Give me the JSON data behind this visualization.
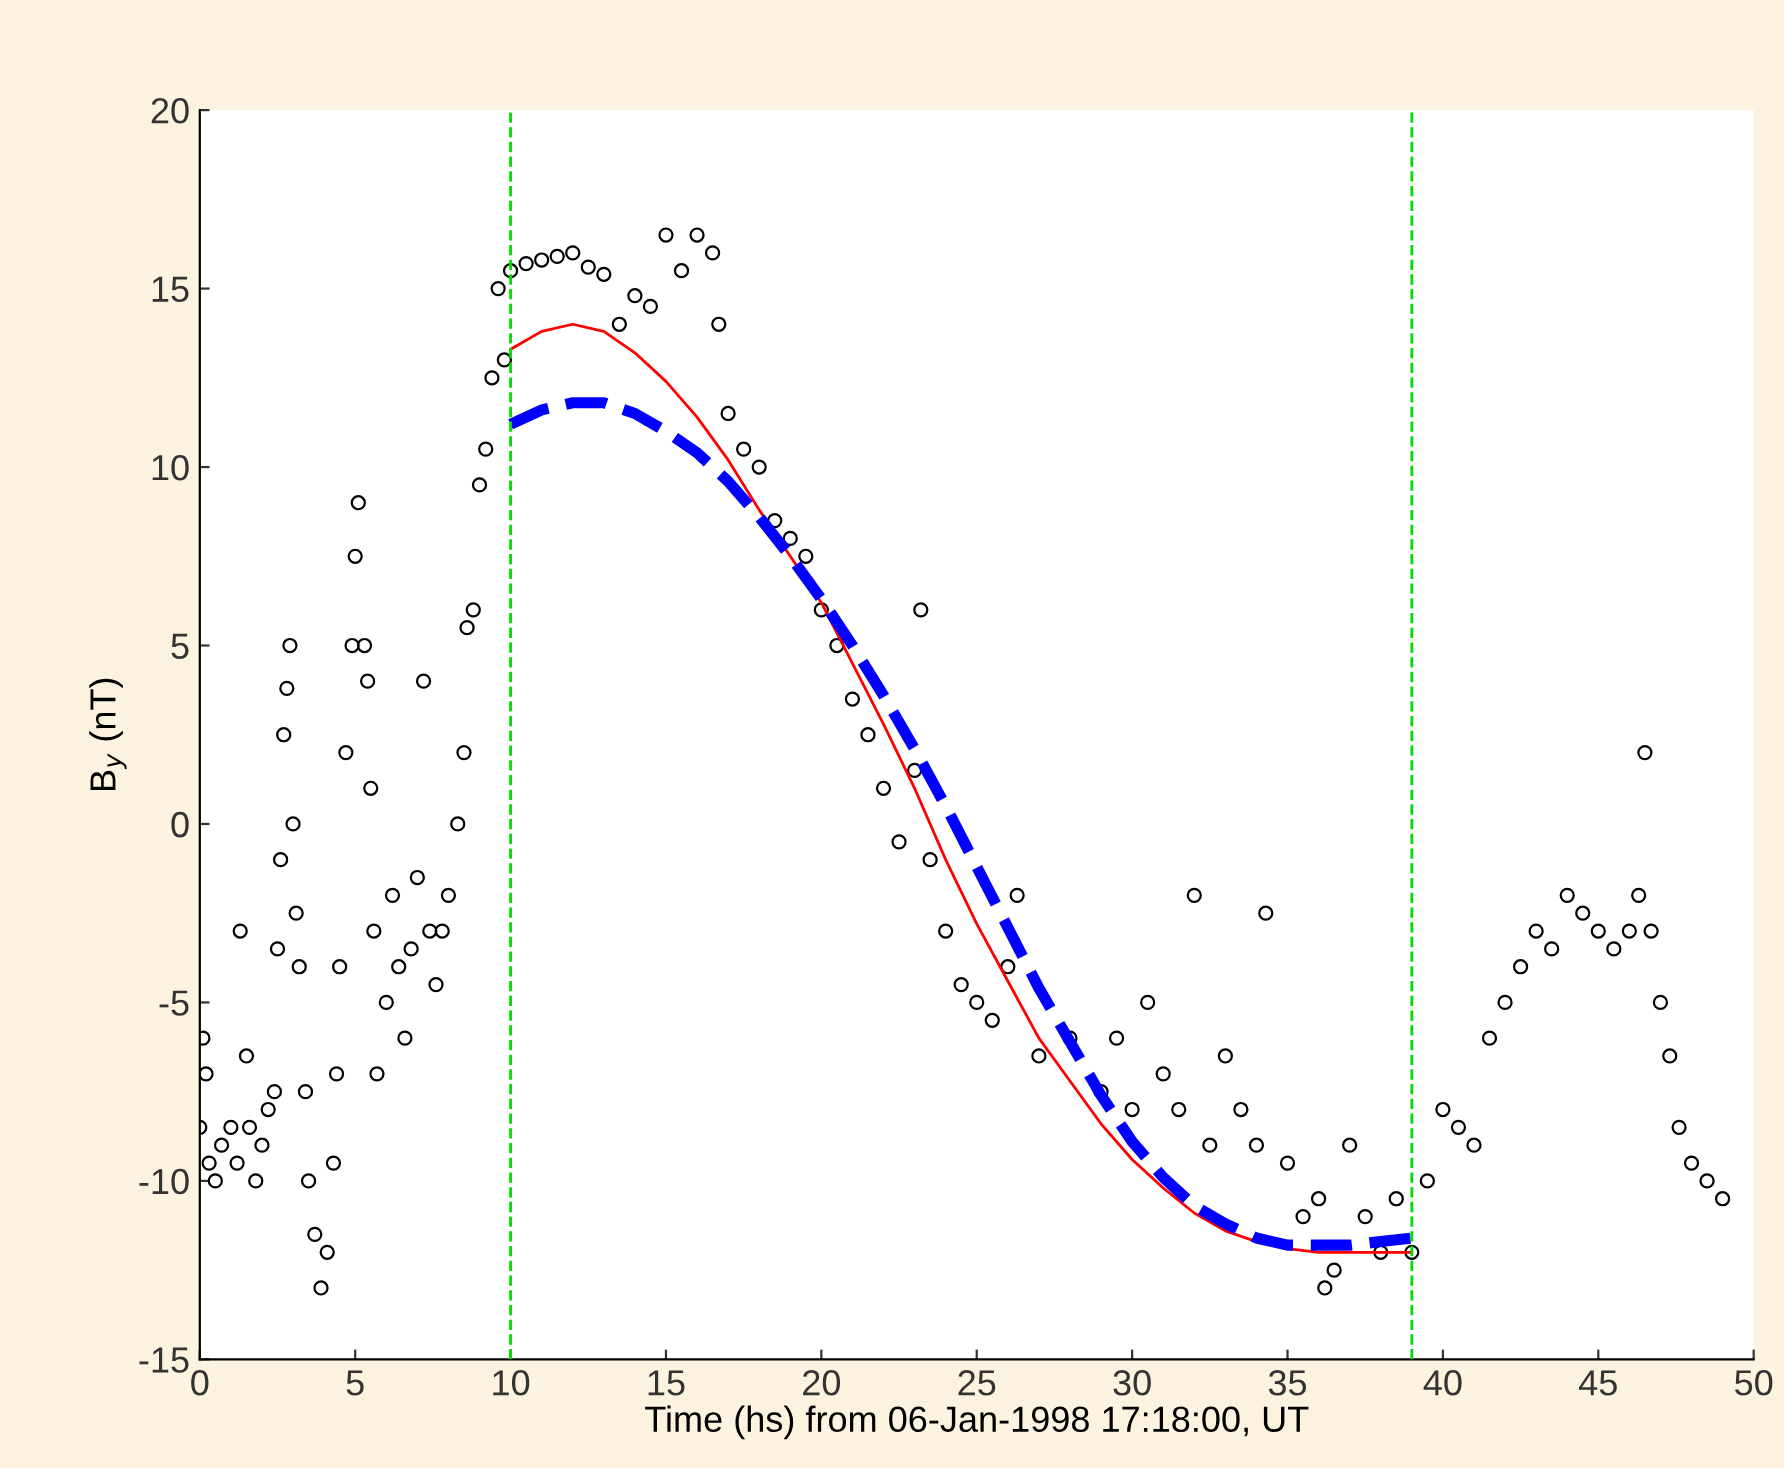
{
  "chart_data": {
    "type": "scatter",
    "xlabel": "Time (hs) from 06-Jan-1998 17:18:00, UT",
    "ylabel": "B$_{y}$ (nT)",
    "xlim": [
      0,
      50
    ],
    "xticks": [
      0,
      5,
      10,
      15,
      20,
      25,
      30,
      35,
      40,
      45,
      50
    ],
    "ylim": [
      -15,
      20
    ],
    "yticks": [
      -15,
      -10,
      -5,
      0,
      5,
      10,
      15,
      20
    ],
    "grid": false,
    "legend": false,
    "series": [
      {
        "color": "#000000",
        "marker": "circle",
        "x": [
          0.0,
          0.1,
          0.2,
          0.3,
          0.5,
          0.7,
          1.0,
          1.2,
          1.3,
          1.5,
          1.6,
          1.8,
          2.0,
          2.2,
          2.4,
          2.5,
          2.6,
          2.7,
          2.8,
          2.9,
          3.0,
          3.1,
          3.2,
          3.4,
          3.5,
          3.7,
          3.9,
          4.1,
          4.3,
          4.4,
          4.5,
          4.7,
          4.9,
          5.0,
          5.1,
          5.3,
          5.4,
          5.5,
          5.6,
          5.7,
          6.0,
          6.2,
          6.4,
          6.6,
          6.8,
          7.0,
          7.2,
          7.4,
          7.6,
          7.8,
          8.0,
          8.3,
          8.5,
          8.6,
          8.8,
          9.0,
          9.2,
          9.4,
          9.6,
          9.8,
          10.0,
          10.5,
          11.0,
          11.5,
          12.0,
          12.5,
          13.0,
          13.5,
          14.0,
          14.5,
          15.0,
          15.5,
          16.0,
          16.5,
          16.7,
          17.0,
          17.5,
          18.0,
          18.5,
          19.0,
          19.5,
          20.0,
          20.5,
          21.0,
          21.5,
          22.0,
          22.5,
          23.0,
          23.2,
          23.5,
          24.0,
          24.5,
          25.0,
          25.5,
          26.0,
          26.3,
          27.0,
          28.0,
          29.0,
          29.5,
          30.0,
          30.5,
          31.0,
          31.5,
          32.0,
          32.5,
          33.0,
          33.5,
          34.0,
          34.3,
          35.0,
          35.5,
          36.0,
          36.2,
          36.5,
          37.0,
          37.5,
          38.0,
          38.5,
          39.0,
          39.5,
          40.0,
          40.5,
          41.0,
          41.5,
          42.0,
          42.5,
          43.0,
          43.5,
          44.0,
          44.5,
          45.0,
          45.5,
          46.0,
          46.3,
          46.5,
          46.7,
          47.0,
          47.3,
          47.6,
          48.0,
          48.5,
          49.0
        ],
        "values": [
          -8.5,
          -6,
          -7,
          -9.5,
          -10,
          -9,
          -8.5,
          -9.5,
          -3,
          -6.5,
          -8.5,
          -10,
          -9,
          -8,
          -7.5,
          -3.5,
          -1,
          2.5,
          3.8,
          5,
          0,
          -2.5,
          -4,
          -7.5,
          -10,
          -11.5,
          -13,
          -12,
          -9.5,
          -7,
          -4,
          2,
          5,
          7.5,
          9,
          5,
          4,
          1,
          -3,
          -7,
          -5,
          -2,
          -4,
          -6,
          -3.5,
          -1.5,
          4,
          -3,
          -4.5,
          -3,
          -2,
          0,
          2,
          5.5,
          6,
          9.5,
          10.5,
          12.5,
          15,
          13,
          15.5,
          15.7,
          15.8,
          15.9,
          16,
          15.6,
          15.4,
          14,
          14.8,
          14.5,
          16.5,
          15.5,
          16.5,
          16,
          14,
          11.5,
          10.5,
          10,
          8.5,
          8,
          7.5,
          6,
          5,
          3.5,
          2.5,
          1,
          -0.5,
          1.5,
          6,
          -1,
          -3,
          -4.5,
          -5,
          -5.5,
          -4,
          -2,
          -6.5,
          -6,
          -7.5,
          -6,
          -8,
          -5,
          -7,
          -8,
          -2,
          -9,
          -6.5,
          -8,
          -9,
          -2.5,
          -9.5,
          -11,
          -10.5,
          -13,
          -12.5,
          -9,
          -11,
          -12,
          -10.5,
          -12,
          -10,
          -8,
          -8.5,
          -9,
          -6,
          -5,
          -4,
          -3,
          -3.5,
          -2,
          -2.5,
          -3,
          -3.5,
          -3,
          -2,
          2,
          -3,
          -5,
          -6.5,
          -8.5,
          -9.5,
          -10,
          -10.5
        ]
      },
      {
        "type": "line",
        "color": "#ff0000",
        "line_style": "solid",
        "x": [
          10,
          11,
          12,
          13,
          14,
          15,
          16,
          17,
          18,
          19,
          20,
          21,
          22,
          23,
          24,
          25,
          26,
          27,
          28,
          29,
          30,
          31,
          32,
          33,
          34,
          35,
          36,
          37,
          38,
          39
        ],
        "values": [
          13.3,
          13.8,
          14,
          13.8,
          13.2,
          12.4,
          11.4,
          10.2,
          8.8,
          7.5,
          6.2,
          4.5,
          2.8,
          1.0,
          -1,
          -2.8,
          -4.4,
          -6,
          -7.2,
          -8.4,
          -9.4,
          -10.2,
          -10.9,
          -11.4,
          -11.7,
          -11.9,
          -12,
          -12,
          -12,
          -12
        ]
      },
      {
        "type": "line",
        "color": "#0000ff",
        "line_style": "dashed",
        "x": [
          10,
          11,
          12,
          13,
          14,
          15,
          16,
          17,
          18,
          19,
          20,
          21,
          22,
          23,
          24,
          25,
          26,
          27,
          28,
          29,
          30,
          31,
          32,
          33,
          34,
          35,
          36,
          37,
          38,
          39
        ],
        "values": [
          11.2,
          11.6,
          11.8,
          11.8,
          11.5,
          11.0,
          10.4,
          9.6,
          8.6,
          7.5,
          6.3,
          5.0,
          3.6,
          2.1,
          0.5,
          -1.2,
          -2.9,
          -4.6,
          -6.1,
          -7.6,
          -8.9,
          -9.9,
          -10.7,
          -11.2,
          -11.6,
          -11.8,
          -11.8,
          -11.8,
          -11.7,
          -11.6
        ]
      }
    ],
    "ref_lines": [
      {
        "axis": "x",
        "value": 10,
        "color": "#00dd00",
        "line_style": "dashed"
      },
      {
        "axis": "x",
        "value": 39,
        "color": "#00dd00",
        "line_style": "dashed"
      }
    ]
  }
}
